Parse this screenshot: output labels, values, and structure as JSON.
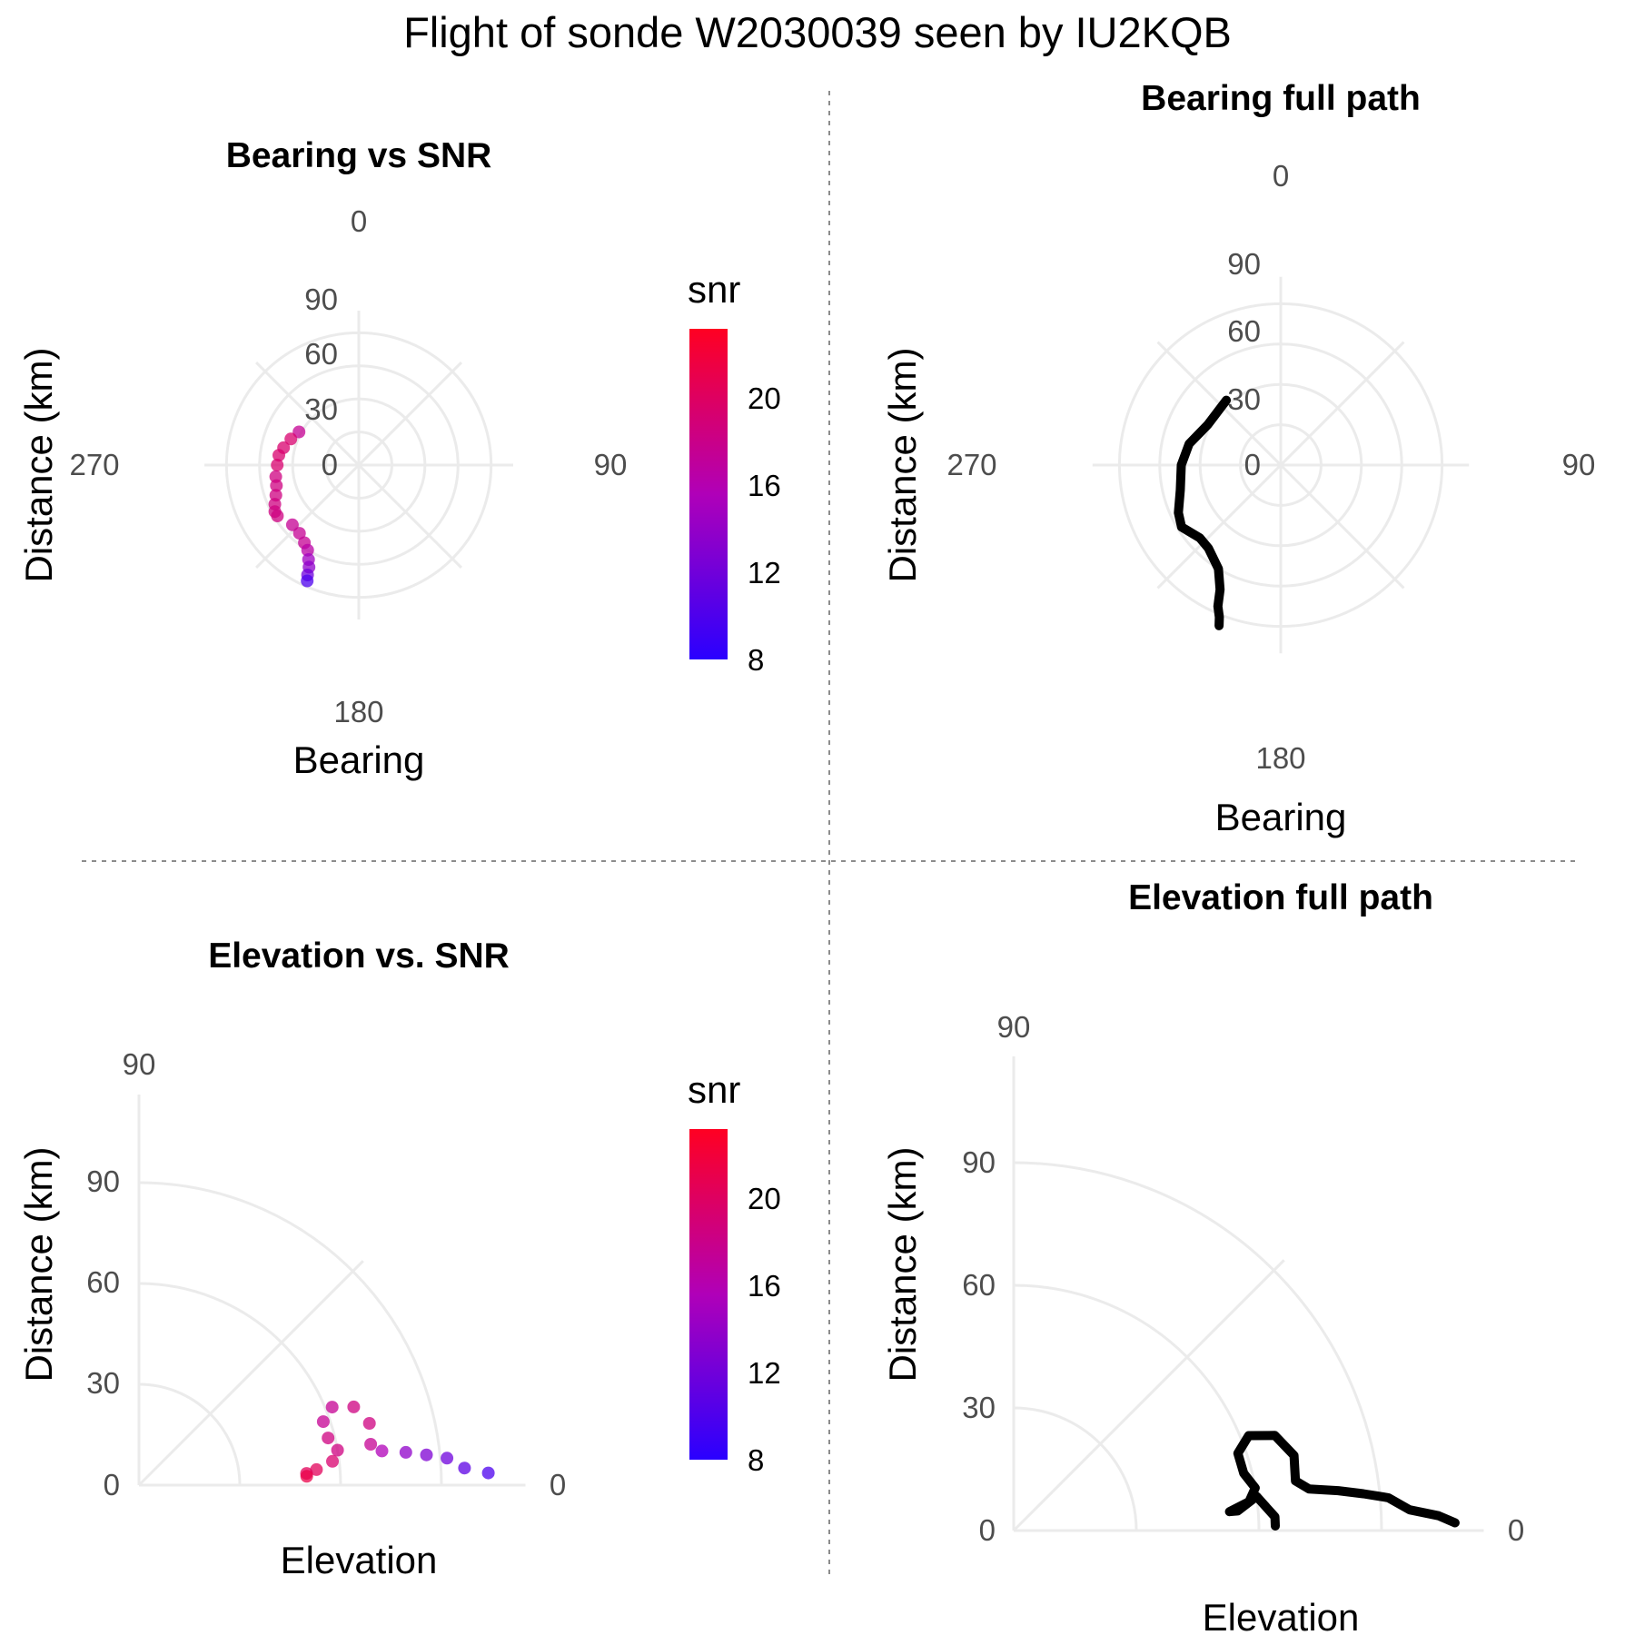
{
  "title": "Flight of sonde W2030039 seen by IU2KQB",
  "colors": {
    "grid": "#ebebeb",
    "divider": "#8c8c8c",
    "snr_low": "#2a00ff",
    "snr_high": "#ff0022",
    "path": "#000000"
  },
  "chart_data": [
    {
      "id": "bearing_snr",
      "type": "scatter",
      "coord": "polar",
      "title": "Bearing vs SNR",
      "xlabel": "Bearing",
      "ylabel": "Distance (km)",
      "angle_ticks": [
        "0",
        "90",
        "180",
        "270"
      ],
      "radius_ticks": [
        "0",
        "30",
        "60",
        "90"
      ],
      "rlim": [
        -30,
        110
      ],
      "color_scale": {
        "title": "snr",
        "min": 8,
        "max": 24,
        "ticks": [
          "8",
          "12",
          "16",
          "20"
        ]
      },
      "points": [
        {
          "bearing": 299,
          "distance": 32,
          "snr": 18
        },
        {
          "bearing": 291,
          "distance": 36,
          "snr": 20
        },
        {
          "bearing": 283,
          "distance": 40,
          "snr": 20
        },
        {
          "bearing": 277,
          "distance": 43,
          "snr": 20
        },
        {
          "bearing": 270,
          "distance": 44,
          "snr": 20
        },
        {
          "bearing": 262,
          "distance": 46,
          "snr": 19
        },
        {
          "bearing": 256,
          "distance": 47,
          "snr": 19
        },
        {
          "bearing": 250,
          "distance": 50,
          "snr": 19
        },
        {
          "bearing": 245,
          "distance": 54,
          "snr": 19
        },
        {
          "bearing": 241,
          "distance": 57,
          "snr": 19
        },
        {
          "bearing": 238,
          "distance": 57,
          "snr": 19
        },
        {
          "bearing": 228,
          "distance": 51,
          "snr": 18
        },
        {
          "bearing": 221,
          "distance": 52,
          "snr": 18
        },
        {
          "bearing": 215,
          "distance": 56,
          "snr": 18
        },
        {
          "bearing": 211,
          "distance": 60,
          "snr": 17
        },
        {
          "bearing": 208,
          "distance": 67,
          "snr": 15
        },
        {
          "bearing": 206,
          "distance": 73,
          "snr": 14
        },
        {
          "bearing": 205,
          "distance": 80,
          "snr": 12
        },
        {
          "bearing": 204,
          "distance": 85,
          "snr": 10
        }
      ]
    },
    {
      "id": "bearing_full",
      "type": "line",
      "coord": "polar",
      "title": "Bearing full path",
      "xlabel": "Bearing",
      "ylabel": "Distance (km)",
      "angle_ticks": [
        "0",
        "90",
        "180",
        "270"
      ],
      "radius_ticks": [
        "0",
        "30",
        "60",
        "90"
      ],
      "rlim": [
        -30,
        110
      ],
      "points": [
        {
          "bearing": 320,
          "distance": 33
        },
        {
          "bearing": 299,
          "distance": 32
        },
        {
          "bearing": 283,
          "distance": 40
        },
        {
          "bearing": 270,
          "distance": 44
        },
        {
          "bearing": 256,
          "distance": 47
        },
        {
          "bearing": 245,
          "distance": 54
        },
        {
          "bearing": 238,
          "distance": 57
        },
        {
          "bearing": 228,
          "distance": 51
        },
        {
          "bearing": 221,
          "distance": 52
        },
        {
          "bearing": 211,
          "distance": 60
        },
        {
          "bearing": 206,
          "distance": 73
        },
        {
          "bearing": 204,
          "distance": 85
        },
        {
          "bearing": 202,
          "distance": 92
        },
        {
          "bearing": 201,
          "distance": 98
        }
      ]
    },
    {
      "id": "elevation_snr",
      "type": "scatter",
      "coord": "polar-quarter",
      "title": "Elevation vs. SNR",
      "xlabel": "Elevation",
      "ylabel": "Distance (km)",
      "angle_ticks": [
        "0",
        "90"
      ],
      "radius_ticks": [
        "0",
        "30",
        "60",
        "90"
      ],
      "rlim": [
        0,
        115
      ],
      "color_scale": {
        "title": "snr",
        "min": 8,
        "max": 24,
        "ticks": [
          "8",
          "12",
          "16",
          "20"
        ]
      },
      "points": [
        {
          "elevation": 2,
          "distance": 104,
          "snr": 10
        },
        {
          "elevation": 3,
          "distance": 97,
          "snr": 11
        },
        {
          "elevation": 5,
          "distance": 92,
          "snr": 12
        },
        {
          "elevation": 6,
          "distance": 86,
          "snr": 13
        },
        {
          "elevation": 7,
          "distance": 80,
          "snr": 14
        },
        {
          "elevation": 8,
          "distance": 73,
          "snr": 16
        },
        {
          "elevation": 10,
          "distance": 70,
          "snr": 18
        },
        {
          "elevation": 15,
          "distance": 71,
          "snr": 19
        },
        {
          "elevation": 20,
          "distance": 68,
          "snr": 19
        },
        {
          "elevation": 22,
          "distance": 62,
          "snr": 18
        },
        {
          "elevation": 19,
          "distance": 58,
          "snr": 18
        },
        {
          "elevation": 14,
          "distance": 58,
          "snr": 19
        },
        {
          "elevation": 10,
          "distance": 60,
          "snr": 19
        },
        {
          "elevation": 7,
          "distance": 58,
          "snr": 20
        },
        {
          "elevation": 5,
          "distance": 53,
          "snr": 21
        },
        {
          "elevation": 4,
          "distance": 50,
          "snr": 21
        },
        {
          "elevation": 3,
          "distance": 50,
          "snr": 22
        }
      ]
    },
    {
      "id": "elevation_full",
      "type": "line",
      "coord": "polar-quarter",
      "title": "Elevation full path",
      "xlabel": "Elevation",
      "ylabel": "Distance (km)",
      "angle_ticks": [
        "0",
        "90"
      ],
      "radius_ticks": [
        "0",
        "30",
        "60",
        "90"
      ],
      "rlim": [
        0,
        115
      ],
      "points": [
        {
          "elevation": 1,
          "distance": 108
        },
        {
          "elevation": 2,
          "distance": 104
        },
        {
          "elevation": 3,
          "distance": 97
        },
        {
          "elevation": 5,
          "distance": 92
        },
        {
          "elevation": 6,
          "distance": 86
        },
        {
          "elevation": 7,
          "distance": 80
        },
        {
          "elevation": 8,
          "distance": 73
        },
        {
          "elevation": 10,
          "distance": 70
        },
        {
          "elevation": 15,
          "distance": 71
        },
        {
          "elevation": 20,
          "distance": 68
        },
        {
          "elevation": 22,
          "distance": 62
        },
        {
          "elevation": 19,
          "distance": 58
        },
        {
          "elevation": 14,
          "distance": 58
        },
        {
          "elevation": 10,
          "distance": 60
        },
        {
          "elevation": 7,
          "distance": 58
        },
        {
          "elevation": 5,
          "distance": 53
        },
        {
          "elevation": 5,
          "distance": 55
        },
        {
          "elevation": 8,
          "distance": 60
        },
        {
          "elevation": 3,
          "distance": 64
        },
        {
          "elevation": 1,
          "distance": 64
        }
      ]
    }
  ]
}
